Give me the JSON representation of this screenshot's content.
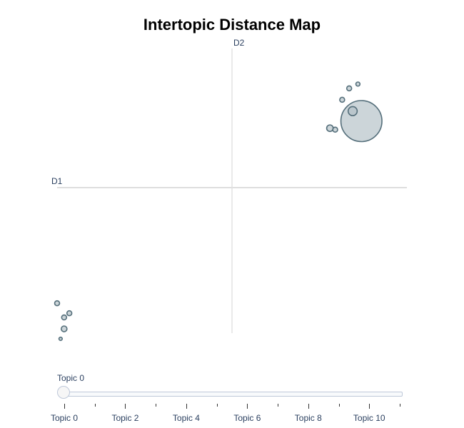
{
  "chart_data": {
    "type": "scatter",
    "title": "Intertopic Distance Map",
    "xlabel": "D1",
    "ylabel": "D2",
    "xlim": [
      -10,
      10
    ],
    "ylim": [
      -10,
      10
    ],
    "grid": false,
    "legend": "none",
    "bubble_color": "#B0BEC5",
    "bubble_stroke": "#546E7A",
    "axis_line_color": "#d3d3d3",
    "points": [
      {
        "x": -10.0,
        "y": -7.9,
        "size": 3
      },
      {
        "x": -9.3,
        "y": -8.6,
        "size": 3
      },
      {
        "x": -9.6,
        "y": -8.9,
        "size": 3
      },
      {
        "x": -9.6,
        "y": -9.7,
        "size": 3.5
      },
      {
        "x": -9.8,
        "y": -10.4,
        "size": 2
      },
      {
        "x": 7.4,
        "y": 4.9,
        "size": 25
      },
      {
        "x": 7.2,
        "y": 7.5,
        "size": 2.5
      },
      {
        "x": 6.7,
        "y": 7.2,
        "size": 3
      },
      {
        "x": 6.3,
        "y": 6.4,
        "size": 3
      },
      {
        "x": 6.9,
        "y": 5.6,
        "size": 5.5
      },
      {
        "x": 5.6,
        "y": 4.4,
        "size": 4
      },
      {
        "x": 5.9,
        "y": 4.3,
        "size": 3
      }
    ]
  },
  "slider": {
    "current_label": "Topic 0",
    "value": 0,
    "min": 0,
    "max": 11,
    "tick_labels": [
      "Topic 0",
      "Topic 2",
      "Topic 4",
      "Topic 6",
      "Topic 8",
      "Topic 10"
    ],
    "tick_values": [
      0,
      2,
      4,
      6,
      8,
      10
    ]
  }
}
